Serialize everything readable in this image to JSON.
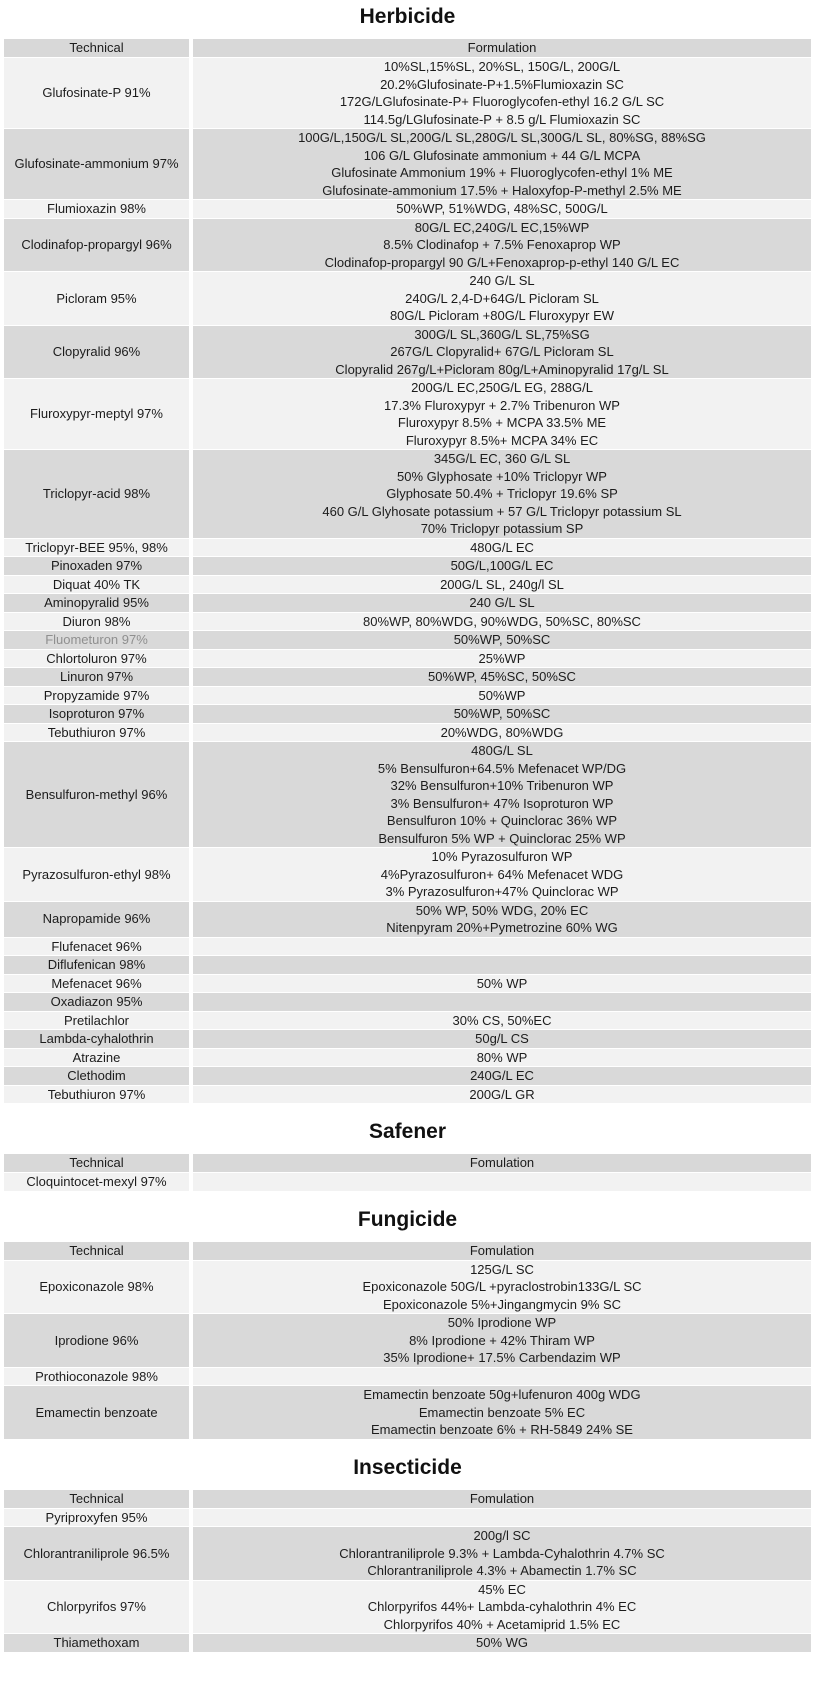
{
  "colors": {
    "page_background": "#ffffff",
    "header_row_bg": "#d8d8d8",
    "row_light_bg": "#f2f2f2",
    "row_dark_bg": "#d9d9d9",
    "text": "#1c1c1c",
    "muted_text": "#8f8f8f"
  },
  "sections": [
    {
      "id": "herbicide",
      "title": "Herbicide",
      "columns": {
        "technical": "Technical",
        "formulation": "Formulation"
      },
      "rows": [
        {
          "technical": "Glufosinate-P 91%",
          "muted": false,
          "formulation": [
            "10%SL,15%SL, 20%SL, 150G/L, 200G/L",
            "20.2%Glufosinate-P+1.5%Flumioxazin SC",
            "172G/LGlufosinate-P+ Fluoroglycofen-ethyl 16.2 G/L SC",
            "114.5g/LGlufosinate-P + 8.5 g/L Flumioxazin SC"
          ]
        },
        {
          "technical": "Glufosinate-ammonium 97%",
          "muted": false,
          "formulation": [
            "100G/L,150G/L SL,200G/L SL,280G/L SL,300G/L SL, 80%SG, 88%SG",
            "106 G/L Glufosinate ammonium + 44 G/L MCPA",
            "Glufosinate Ammonium 19% + Fluoroglycofen-ethyl 1% ME",
            "Glufosinate-ammonium 17.5% + Haloxyfop-P-methyl 2.5% ME"
          ]
        },
        {
          "technical": "Flumioxazin 98%",
          "muted": false,
          "formulation": [
            "50%WP, 51%WDG, 48%SC, 500G/L"
          ]
        },
        {
          "technical": "Clodinafop-propargyl 96%",
          "muted": false,
          "formulation": [
            "80G/L EC,240G/L EC,15%WP",
            "8.5% Clodinafop + 7.5% Fenoxaprop WP",
            "Clodinafop-propargyl 90 G/L+Fenoxaprop-p-ethyl 140 G/L EC"
          ]
        },
        {
          "technical": "Picloram 95%",
          "muted": false,
          "formulation": [
            "240 G/L SL",
            "240G/L 2,4-D+64G/L Picloram SL",
            "80G/L Picloram +80G/L Fluroxypyr EW"
          ]
        },
        {
          "technical": "Clopyralid 96%",
          "muted": false,
          "formulation": [
            "300G/L SL,360G/L SL,75%SG",
            "267G/L Clopyralid+ 67G/L Picloram SL",
            "Clopyralid 267g/L+Picloram 80g/L+Aminopyralid 17g/L SL"
          ]
        },
        {
          "technical": "Fluroxypyr-meptyl 97%",
          "muted": false,
          "formulation": [
            "200G/L EC,250G/L EG, 288G/L",
            "17.3% Fluroxypyr + 2.7% Tribenuron WP",
            "Fluroxypyr 8.5% + MCPA 33.5%  ME",
            "Fluroxypyr 8.5%+ MCPA 34% EC"
          ]
        },
        {
          "technical": "Triclopyr-acid 98%",
          "muted": false,
          "formulation": [
            "345G/L EC, 360 G/L SL",
            "50% Glyphosate +10% Triclopyr WP",
            "Glyphosate 50.4% + Triclopyr 19.6% SP",
            "460 G/L Glyhosate potassium + 57 G/L Triclopyr potassium SL",
            "70% Triclopyr potassium SP"
          ]
        },
        {
          "technical": "Triclopyr-BEE 95%, 98%",
          "muted": false,
          "formulation": [
            "480G/L EC"
          ]
        },
        {
          "technical": "Pinoxaden 97%",
          "muted": false,
          "formulation": [
            "50G/L,100G/L EC"
          ]
        },
        {
          "technical": "Diquat 40% TK",
          "muted": false,
          "formulation": [
            "200G/L SL, 240g/l SL"
          ]
        },
        {
          "technical": "Aminopyralid 95%",
          "muted": false,
          "formulation": [
            "240 G/L SL"
          ]
        },
        {
          "technical": "Diuron 98%",
          "muted": false,
          "formulation": [
            "80%WP, 80%WDG, 90%WDG, 50%SC, 80%SC"
          ]
        },
        {
          "technical": "Fluometuron 97%",
          "muted": true,
          "formulation": [
            "50%WP, 50%SC"
          ]
        },
        {
          "technical": "Chlortoluron 97%",
          "muted": false,
          "formulation": [
            "25%WP"
          ]
        },
        {
          "technical": "Linuron 97%",
          "muted": false,
          "formulation": [
            "50%WP, 45%SC, 50%SC"
          ]
        },
        {
          "technical": "Propyzamide 97%",
          "muted": false,
          "formulation": [
            "50%WP"
          ]
        },
        {
          "technical": "Isoproturon 97%",
          "muted": false,
          "formulation": [
            "50%WP, 50%SC"
          ]
        },
        {
          "technical": "Tebuthiuron 97%",
          "muted": false,
          "formulation": [
            "20%WDG, 80%WDG"
          ]
        },
        {
          "technical": "Bensulfuron-methyl 96%",
          "muted": false,
          "formulation": [
            "480G/L SL",
            "5% Bensulfuron+64.5% Mefenacet WP/DG",
            "32% Bensulfuron+10% Tribenuron WP",
            "3% Bensulfuron+ 47% Isoproturon WP",
            "Bensulfuron 10% + Quinclorac 36% WP",
            "Bensulfuron 5% WP + Quinclorac 25% WP"
          ]
        },
        {
          "technical": "Pyrazosulfuron-ethyl 98%",
          "muted": false,
          "formulation": [
            "10% Pyrazosulfuron WP",
            "4%Pyrazosulfuron+ 64% Mefenacet WDG",
            "3% Pyrazosulfuron+47% Quinclorac WP"
          ]
        },
        {
          "technical": "Napropamide 96%",
          "muted": false,
          "formulation": [
            "50% WP, 50% WDG, 20% EC",
            "Nitenpyram 20%+Pymetrozine 60% WG"
          ]
        },
        {
          "technical": "Flufenacet 96%",
          "muted": false,
          "formulation": []
        },
        {
          "technical": "Diflufenican 98%",
          "muted": false,
          "formulation": []
        },
        {
          "technical": "Mefenacet 96%",
          "muted": false,
          "formulation": [
            "50% WP"
          ]
        },
        {
          "technical": "Oxadiazon 95%",
          "muted": false,
          "formulation": []
        },
        {
          "technical": "Pretilachlor",
          "muted": false,
          "formulation": [
            "30% CS, 50%EC"
          ]
        },
        {
          "technical": "Lambda-cyhalothrin",
          "muted": false,
          "formulation": [
            "50g/L CS"
          ]
        },
        {
          "technical": "Atrazine",
          "muted": false,
          "formulation": [
            "80% WP"
          ]
        },
        {
          "technical": "Clethodim",
          "muted": false,
          "formulation": [
            "240G/L EC"
          ]
        },
        {
          "technical": "Tebuthiuron 97%",
          "muted": false,
          "formulation": [
            "200G/L GR"
          ]
        }
      ]
    },
    {
      "id": "safener",
      "title": "Safener",
      "columns": {
        "technical": "Technical",
        "formulation": "Fomulation"
      },
      "rows": [
        {
          "technical": "Cloquintocet-mexyl 97%",
          "muted": false,
          "formulation": []
        }
      ]
    },
    {
      "id": "fungicide",
      "title": "Fungicide",
      "columns": {
        "technical": "Technical",
        "formulation": "Fomulation"
      },
      "rows": [
        {
          "technical": "Epoxiconazole 98%",
          "muted": false,
          "formulation": [
            "125G/L SC",
            "Epoxiconazole 50G/L +pyraclostrobin133G/L SC",
            "Epoxiconazole 5%+Jingangmycin 9% SC"
          ]
        },
        {
          "technical": "Iprodione 96%",
          "muted": false,
          "formulation": [
            "50% Iprodione WP",
            "8% Iprodione + 42% Thiram WP",
            "35% Iprodione+ 17.5% Carbendazim WP"
          ]
        },
        {
          "technical": "Prothioconazole 98%",
          "muted": false,
          "formulation": []
        },
        {
          "technical": "Emamectin benzoate",
          "muted": false,
          "formulation": [
            "Emamectin benzoate 50g+lufenuron 400g WDG",
            "Emamectin benzoate 5% EC",
            "Emamectin benzoate 6% + RH-5849 24% SE"
          ]
        }
      ]
    },
    {
      "id": "insecticide",
      "title": "Insecticide",
      "columns": {
        "technical": "Technical",
        "formulation": "Fomulation"
      },
      "rows": [
        {
          "technical": "Pyriproxyfen 95%",
          "muted": false,
          "formulation": []
        },
        {
          "technical": "Chlorantraniliprole 96.5%",
          "muted": false,
          "formulation": [
            "200g/l SC",
            "Chlorantraniliprole 9.3% + Lambda-Cyhalothrin 4.7% SC",
            "Chlorantraniliprole 4.3% + Abamectin 1.7% SC"
          ]
        },
        {
          "technical": "Chlorpyrifos 97%",
          "muted": false,
          "formulation": [
            "45% EC",
            "Chlorpyrifos 44%+ Lambda-cyhalothrin 4%  EC",
            "Chlorpyrifos 40% + Acetamiprid 1.5% EC"
          ]
        },
        {
          "technical": "Thiamethoxam",
          "muted": false,
          "formulation": [
            "50% WG"
          ]
        }
      ]
    }
  ]
}
